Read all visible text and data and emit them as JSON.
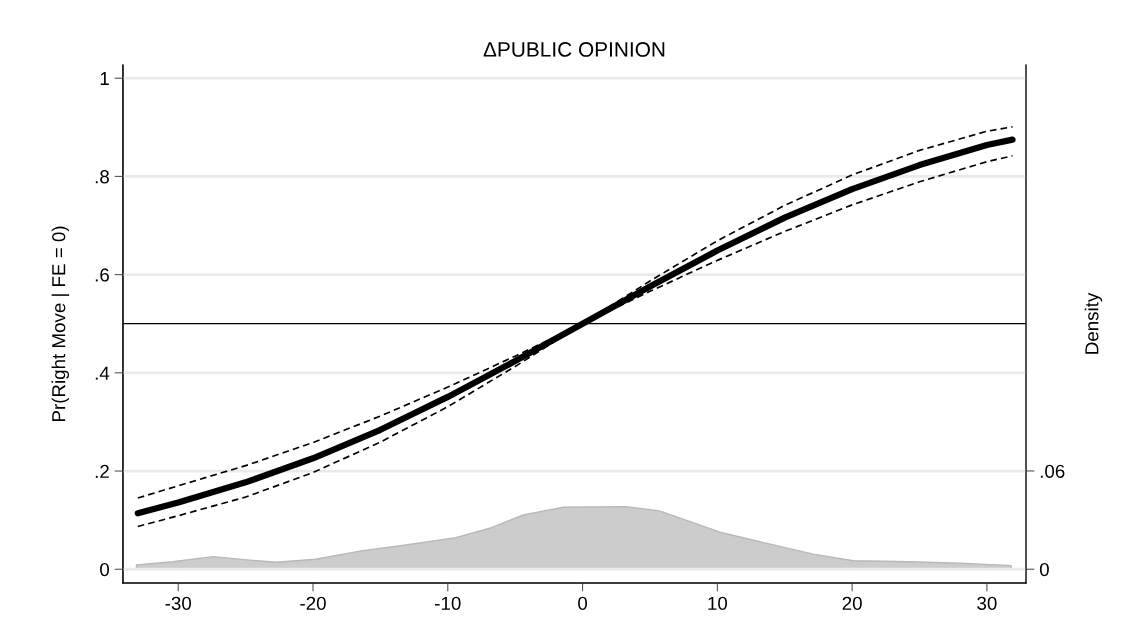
{
  "chart_data": {
    "type": "line",
    "title": "ΔPUBLIC OPINION",
    "ylabel": "Pr(Right Move | FE = 0)",
    "y2label": "Density",
    "xlim": [
      -34.1,
      32.9
    ],
    "xticks": [
      -30,
      -20,
      -10,
      0,
      10,
      20,
      30
    ],
    "ylim": [
      -0.028,
      1.027
    ],
    "yticks": [
      0,
      {
        "value": 0.2,
        "label": ".2"
      },
      {
        "value": 0.4,
        "label": ".4"
      },
      {
        "value": 0.6,
        "label": ".6"
      },
      {
        "value": 0.8,
        "label": ".8"
      },
      1
    ],
    "y2lim": [
      -0.0084,
      0.3078
    ],
    "y2ticks": [
      0,
      {
        "value": 0.06,
        "label": ".06"
      }
    ],
    "grid": "y",
    "legend": false,
    "ref_lines": [
      {
        "axis": "y",
        "value": 0.5,
        "color": "#000000",
        "line_style": "solid"
      }
    ],
    "series": [
      {
        "type": "area",
        "axis": "y2",
        "color": "#cccccc",
        "x": [
          -33.1,
          -30.4,
          -27.4,
          -24.9,
          -22.7,
          -19.8,
          -16.3,
          -13.1,
          -9.4,
          -6.9,
          -4.4,
          -1.5,
          3.2,
          5.7,
          8.2,
          10.2,
          13.6,
          17.1,
          20.1,
          24.3,
          28.0,
          31.8
        ],
        "values": [
          0.0026,
          0.0046,
          0.0077,
          0.0057,
          0.0043,
          0.0061,
          0.0114,
          0.0148,
          0.0193,
          0.025,
          0.0331,
          0.0378,
          0.0382,
          0.0356,
          0.0284,
          0.0226,
          0.0159,
          0.0092,
          0.0052,
          0.0046,
          0.0037,
          0.0022
        ]
      },
      {
        "type": "line",
        "line_style": "dashed",
        "color": "#000000",
        "x": [
          -33,
          -30,
          -25,
          -20,
          -15,
          -10,
          -5,
          0,
          5,
          10,
          15,
          20,
          25,
          30,
          31.9
        ],
        "values": [
          0.145,
          0.17,
          0.211,
          0.258,
          0.312,
          0.371,
          0.434,
          0.5,
          0.587,
          0.669,
          0.741,
          0.803,
          0.853,
          0.892,
          0.901
        ]
      },
      {
        "type": "line",
        "line_style": "dashed",
        "color": "#000000",
        "x": [
          -33,
          -30,
          -25,
          -20,
          -15,
          -10,
          -5,
          0,
          5,
          10,
          15,
          20,
          25,
          30,
          31.9
        ],
        "values": [
          0.087,
          0.109,
          0.147,
          0.197,
          0.259,
          0.331,
          0.413,
          0.5,
          0.566,
          0.629,
          0.688,
          0.742,
          0.789,
          0.83,
          0.842
        ]
      },
      {
        "line_style": "solid",
        "color": "#000000",
        "x": [
          -33,
          -30,
          -25,
          -20,
          -15,
          -10,
          -5,
          0,
          5,
          10,
          15,
          20,
          25,
          30,
          31.9
        ],
        "values": [
          0.114,
          0.136,
          0.177,
          0.226,
          0.284,
          0.351,
          0.424,
          0.5,
          0.576,
          0.649,
          0.716,
          0.774,
          0.823,
          0.864,
          0.875
        ]
      }
    ]
  }
}
